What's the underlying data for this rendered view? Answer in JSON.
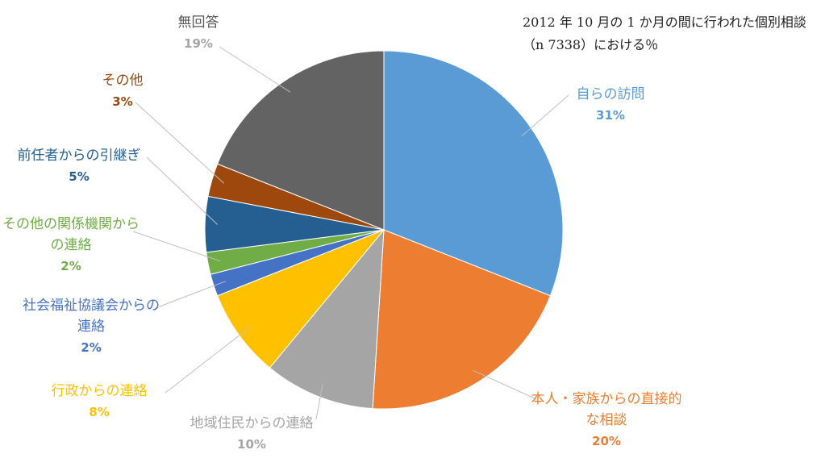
{
  "chart_data": {
    "type": "pie",
    "title": "2012 年 10 月の 1 か月の間に行われた個別相談（n 7338）における％",
    "categories": [
      "自らの訪問",
      "本人・家族からの直接的な相談",
      "地域住民からの連絡",
      "行政からの連絡",
      "社会福祉協議会からの連絡",
      "その他の関係機関からの連絡",
      "前任者からの引継ぎ",
      "その他",
      "無回答"
    ],
    "values": [
      31,
      20,
      10,
      8,
      2,
      2,
      5,
      3,
      19
    ],
    "value_labels": [
      "31%",
      "20%",
      "10%",
      "8%",
      "2%",
      "2%",
      "5%",
      "3%",
      "19%"
    ],
    "colors": [
      "#5b9bd5",
      "#ed7d31",
      "#a5a5a5",
      "#ffc000",
      "#4472c4",
      "#70ad47",
      "#255e91",
      "#9e480e",
      "#636363"
    ]
  }
}
